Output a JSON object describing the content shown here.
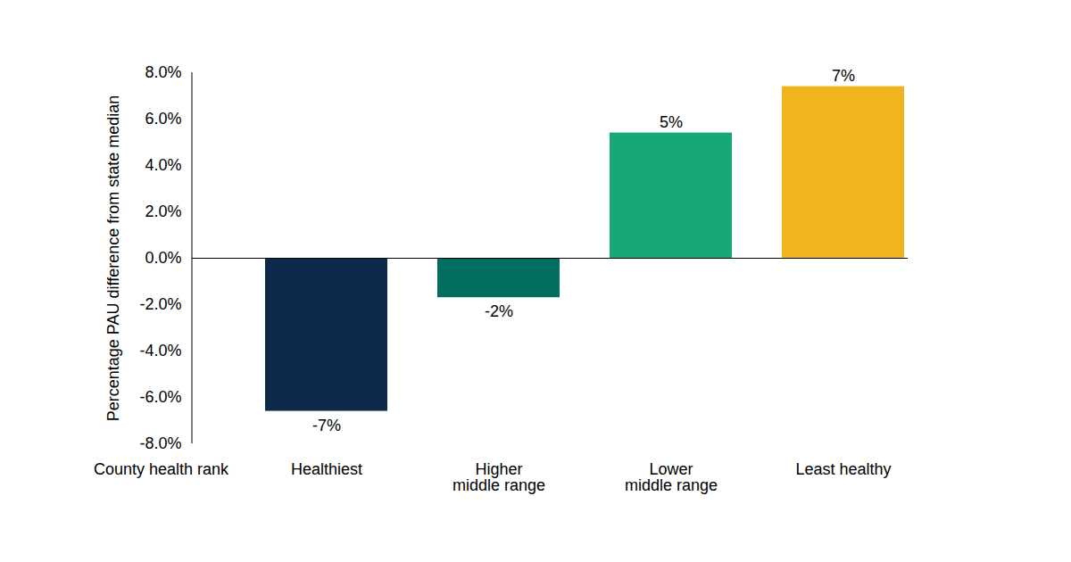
{
  "chart_data": {
    "type": "bar",
    "y_label": "Percentage PAU difference from state median",
    "x_label": "County health rank",
    "categories": [
      "Healthiest",
      "Higher\nmiddle range",
      "Lower\nmiddle range",
      "Least healthy"
    ],
    "values": [
      -6.6,
      -1.7,
      5.4,
      7.4
    ],
    "value_labels": [
      "-7%",
      "-2%",
      "5%",
      "7%"
    ],
    "colors": [
      "#0d2a4a",
      "#026e5f",
      "#16a878",
      "#f0b41f"
    ],
    "ylim": [
      -8,
      8
    ],
    "yticks": [
      {
        "value": -8,
        "label": "-8.0%"
      },
      {
        "value": -6,
        "label": "-6.0%"
      },
      {
        "value": -4,
        "label": "-4.0%"
      },
      {
        "value": -2,
        "label": "-2.0%"
      },
      {
        "value": 0,
        "label": "0.0%"
      },
      {
        "value": 2,
        "label": "2.0%"
      },
      {
        "value": 4,
        "label": "4.0%"
      },
      {
        "value": 6,
        "label": "6.0%"
      },
      {
        "value": 8,
        "label": "8.0%"
      }
    ],
    "grid": false,
    "data_labels": true
  }
}
